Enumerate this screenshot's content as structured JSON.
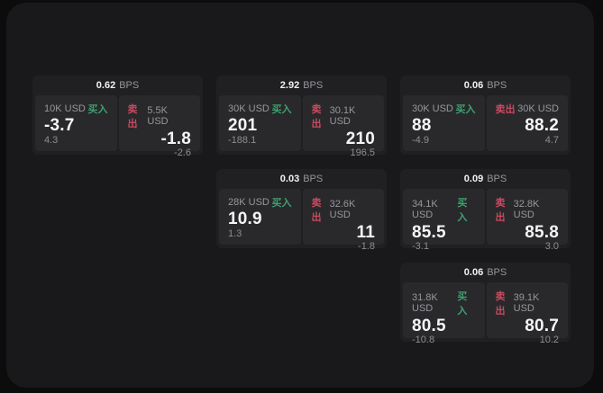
{
  "labels": {
    "bps_unit": "BPS",
    "buy": "买入",
    "sell": "卖出"
  },
  "colors": {
    "page_background": "#0c0c0d",
    "panel_background": "#19191b",
    "card_background": "#202023",
    "tile_background": "#29292c",
    "buy_accent": "#3fa06d",
    "sell_accent": "#c74a5e",
    "primary_text": "#f5f5f6",
    "muted_text": "#97979c"
  },
  "cards": [
    {
      "bps": "0.62",
      "buy": {
        "amount": "10K USD",
        "price": "-3.7",
        "delta": "4.3"
      },
      "sell": {
        "amount": "5.5K USD",
        "price": "-1.8",
        "delta": "-2.6"
      }
    },
    {
      "bps": "2.92",
      "buy": {
        "amount": "30K USD",
        "price": "201",
        "delta": "-188.1"
      },
      "sell": {
        "amount": "30.1K USD",
        "price": "210",
        "delta": "196.5"
      }
    },
    {
      "bps": "0.06",
      "buy": {
        "amount": "30K USD",
        "price": "88",
        "delta": "-4.9"
      },
      "sell": {
        "amount": "30K USD",
        "price": "88.2",
        "delta": "4.7"
      }
    },
    {
      "bps": "0.03",
      "buy": {
        "amount": "28K USD",
        "price": "10.9",
        "delta": "1.3"
      },
      "sell": {
        "amount": "32.6K USD",
        "price": "11",
        "delta": "-1.8"
      }
    },
    {
      "bps": "0.09",
      "buy": {
        "amount": "34.1K USD",
        "price": "85.5",
        "delta": "-3.1"
      },
      "sell": {
        "amount": "32.8K USD",
        "price": "85.8",
        "delta": "3.0"
      }
    },
    {
      "bps": "0.06",
      "buy": {
        "amount": "31.8K USD",
        "price": "80.5",
        "delta": "-10.8"
      },
      "sell": {
        "amount": "39.1K USD",
        "price": "80.7",
        "delta": "10.2"
      }
    }
  ]
}
